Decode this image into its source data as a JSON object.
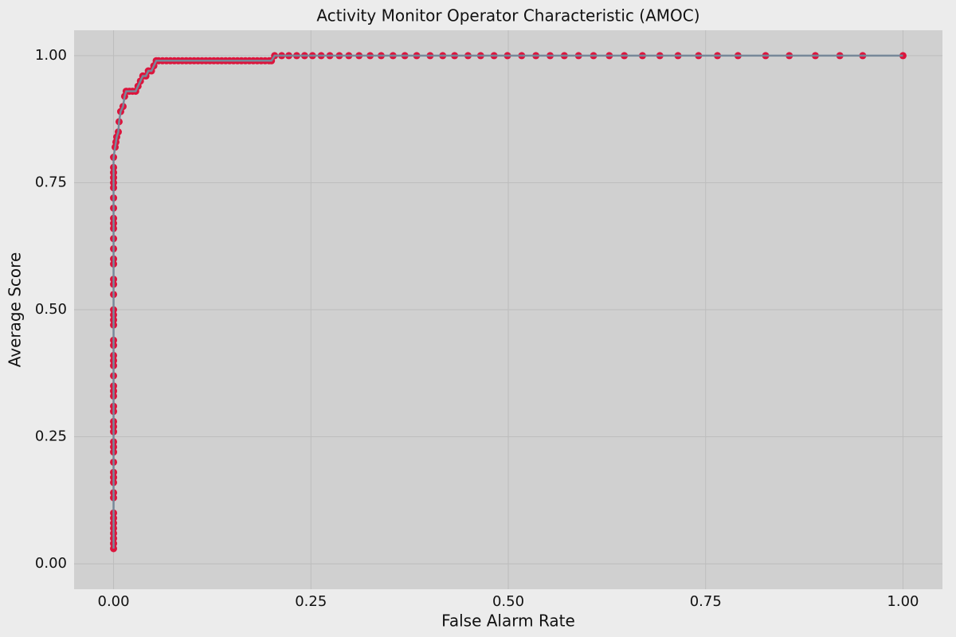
{
  "chart_data": {
    "type": "line",
    "title": "Activity Monitor Operator Characteristic (AMOC)",
    "xlabel": "False Alarm Rate",
    "ylabel": "Average Score",
    "x": [
      0,
      0,
      0,
      0,
      0,
      0,
      0,
      0,
      0,
      0,
      0,
      0,
      0,
      0,
      0,
      0,
      0,
      0,
      0,
      0,
      0,
      0,
      0,
      0,
      0,
      0,
      0,
      0,
      0,
      0,
      0,
      0,
      0,
      0,
      0,
      0,
      0,
      0,
      0,
      0,
      0,
      0,
      0,
      0,
      0,
      0,
      0,
      0,
      0,
      0,
      0,
      0,
      0,
      0.002,
      0.003,
      0.004,
      0.006,
      0.007,
      0.009,
      0.012,
      0.014,
      0.016,
      0.02,
      0.024,
      0.028,
      0.031,
      0.034,
      0.037,
      0.041,
      0.044,
      0.048,
      0.051,
      0.054,
      0.057,
      0.062,
      0.067,
      0.072,
      0.077,
      0.082,
      0.087,
      0.092,
      0.097,
      0.102,
      0.107,
      0.112,
      0.117,
      0.122,
      0.127,
      0.132,
      0.137,
      0.142,
      0.147,
      0.152,
      0.157,
      0.162,
      0.167,
      0.172,
      0.177,
      0.182,
      0.187,
      0.192,
      0.197,
      0.2,
      0.204,
      0.213,
      0.222,
      0.232,
      0.242,
      0.252,
      0.263,
      0.274,
      0.286,
      0.298,
      0.311,
      0.325,
      0.339,
      0.354,
      0.369,
      0.384,
      0.401,
      0.417,
      0.432,
      0.449,
      0.465,
      0.482,
      0.499,
      0.517,
      0.535,
      0.553,
      0.571,
      0.589,
      0.608,
      0.628,
      0.647,
      0.67,
      0.692,
      0.715,
      0.741,
      0.765,
      0.791,
      0.826,
      0.856,
      0.889,
      0.92,
      0.949,
      1.0
    ],
    "series": [
      {
        "name": "AMOC",
        "color": "#778899",
        "marker_color": "#dc143c",
        "values": [
          0.03,
          0.04,
          0.05,
          0.06,
          0.07,
          0.08,
          0.09,
          0.1,
          0.13,
          0.14,
          0.16,
          0.17,
          0.18,
          0.2,
          0.22,
          0.23,
          0.24,
          0.26,
          0.27,
          0.28,
          0.3,
          0.31,
          0.33,
          0.34,
          0.35,
          0.37,
          0.39,
          0.4,
          0.41,
          0.43,
          0.44,
          0.47,
          0.48,
          0.49,
          0.5,
          0.53,
          0.55,
          0.56,
          0.59,
          0.6,
          0.62,
          0.64,
          0.66,
          0.67,
          0.68,
          0.7,
          0.72,
          0.74,
          0.75,
          0.76,
          0.77,
          0.78,
          0.8,
          0.82,
          0.83,
          0.84,
          0.85,
          0.87,
          0.89,
          0.9,
          0.92,
          0.93,
          0.93,
          0.93,
          0.93,
          0.94,
          0.95,
          0.96,
          0.96,
          0.97,
          0.97,
          0.98,
          0.99,
          0.99,
          0.99,
          0.99,
          0.99,
          0.99,
          0.99,
          0.99,
          0.99,
          0.99,
          0.99,
          0.99,
          0.99,
          0.99,
          0.99,
          0.99,
          0.99,
          0.99,
          0.99,
          0.99,
          0.99,
          0.99,
          0.99,
          0.99,
          0.99,
          0.99,
          0.99,
          0.99,
          0.99,
          0.99,
          0.99,
          1,
          1,
          1,
          1,
          1,
          1,
          1,
          1,
          1,
          1,
          1,
          1,
          1,
          1,
          1,
          1,
          1,
          1,
          1,
          1,
          1,
          1,
          1,
          1,
          1,
          1,
          1,
          1,
          1,
          1,
          1,
          1,
          1,
          1,
          1,
          1,
          1,
          1,
          1,
          1,
          1,
          1,
          1
        ]
      }
    ],
    "xlim": [
      -0.05,
      1.05
    ],
    "ylim": [
      -0.05,
      1.05
    ],
    "xticks": [
      {
        "value": 0,
        "label": "0.00"
      },
      {
        "value": 0.25,
        "label": "0.25"
      },
      {
        "value": 0.5,
        "label": "0.50"
      },
      {
        "value": 0.75,
        "label": "0.75"
      },
      {
        "value": 1,
        "label": "1.00"
      }
    ],
    "yticks": [
      {
        "value": 0,
        "label": "0.00"
      },
      {
        "value": 0.25,
        "label": "0.25"
      },
      {
        "value": 0.5,
        "label": "0.50"
      },
      {
        "value": 0.75,
        "label": "0.75"
      },
      {
        "value": 1,
        "label": "1.00"
      }
    ],
    "grid": true
  }
}
